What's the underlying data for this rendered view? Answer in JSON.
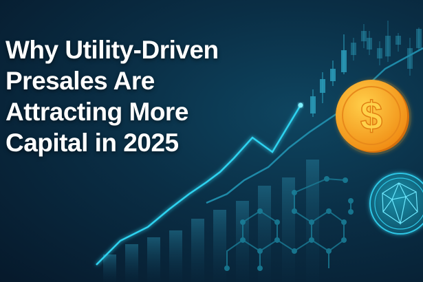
{
  "headline": {
    "lines": [
      "Why Utility-Driven",
      "Presales Are",
      "Attracting More",
      "Capital in 2025"
    ]
  },
  "illustration": {
    "coin_symbol": "$",
    "icons": [
      "dollar-coin-icon",
      "crypto-token-icon",
      "candlestick-chart",
      "trend-line",
      "bar-chart",
      "hexagon-network"
    ],
    "colors": {
      "background": "#0a2e45",
      "accent": "#2fd3f0",
      "coin": "#f5a623",
      "text": "#ffffff"
    }
  }
}
